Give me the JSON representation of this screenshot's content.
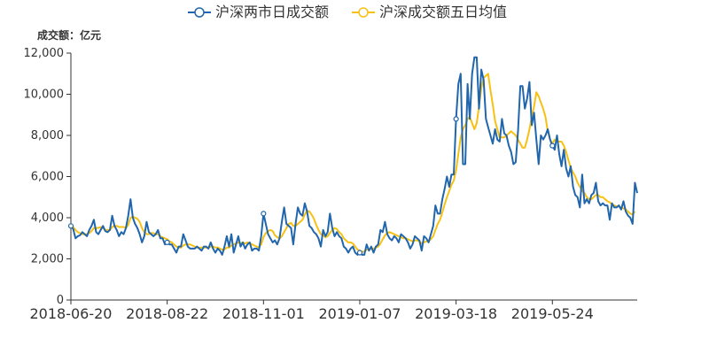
{
  "chart_data": {
    "type": "line",
    "unit_label": "成交额：亿元",
    "legend_position": "top-center",
    "grid": false,
    "ylim": [
      0,
      12000
    ],
    "y_ticks": [
      "0",
      "2,000",
      "4,000",
      "6,000",
      "8,000",
      "10,000",
      "12,000"
    ],
    "x_start": "2018-06-20",
    "x_ticks": [
      "2018-06-20",
      "2018-08-22",
      "2018-11-01",
      "2019-01-07",
      "2019-03-18",
      "2019-05-24"
    ],
    "x_tick_positions": [
      0,
      42,
      84,
      126,
      168,
      210
    ],
    "colors": {
      "daily": "#2166ac",
      "ma5": "#f7c114"
    },
    "series": [
      {
        "name": "沪深两市日成交额",
        "key": "daily",
        "values": [
          3600,
          3450,
          3000,
          3100,
          3150,
          3300,
          3200,
          3100,
          3400,
          3600,
          3900,
          3300,
          3200,
          3400,
          3600,
          3350,
          3300,
          3400,
          4100,
          3600,
          3400,
          3100,
          3300,
          3200,
          3500,
          4100,
          4900,
          4000,
          3700,
          3500,
          3200,
          2800,
          3100,
          3800,
          3300,
          3200,
          3100,
          3200,
          3400,
          3000,
          3000,
          2700,
          2800,
          2700,
          2700,
          2500,
          2300,
          2600,
          2600,
          3200,
          2900,
          2600,
          2500,
          2500,
          2500,
          2600,
          2500,
          2400,
          2600,
          2600,
          2500,
          2800,
          2500,
          2300,
          2500,
          2400,
          2200,
          2600,
          3100,
          2600,
          3200,
          2300,
          2700,
          3100,
          2600,
          2800,
          2500,
          2700,
          2800,
          2400,
          2500,
          2500,
          2400,
          3100,
          4200,
          3700,
          3200,
          3000,
          2800,
          2900,
          2700,
          3000,
          3800,
          4500,
          3700,
          3600,
          3500,
          2700,
          3700,
          4500,
          4200,
          4100,
          4700,
          4300,
          3600,
          3500,
          3300,
          3200,
          3000,
          2600,
          3400,
          3100,
          3300,
          4200,
          3500,
          3100,
          3300,
          3100,
          3000,
          2600,
          2500,
          2300,
          2500,
          2600,
          2300,
          2200,
          2300,
          2200,
          2200,
          2700,
          2400,
          2600,
          2300,
          2600,
          2700,
          3400,
          3300,
          3800,
          3200,
          3000,
          2900,
          3100,
          3000,
          2800,
          3200,
          3100,
          3000,
          2800,
          2500,
          2700,
          3100,
          3000,
          2900,
          2400,
          3100,
          3000,
          2800,
          3200,
          3600,
          4600,
          4200,
          4200,
          4900,
          5400,
          6000,
          5500,
          6100,
          6100,
          8800,
          10500,
          11000,
          6600,
          6600,
          10500,
          8800,
          11000,
          11800,
          11800,
          9300,
          11200,
          10700,
          8800,
          8400,
          8000,
          7600,
          8300,
          7800,
          7700,
          8800,
          8100,
          8000,
          7500,
          7200,
          6600,
          6700,
          8200,
          10400,
          10400,
          9300,
          9800,
          10600,
          8500,
          9100,
          7800,
          6600,
          8000,
          7800,
          8000,
          8300,
          7800,
          7500,
          7300,
          8000,
          7100,
          6500,
          7300,
          6400,
          6000,
          6500,
          5500,
          5100,
          5000,
          4500,
          6100,
          4700,
          4900,
          4700,
          5100,
          5200,
          5700,
          4800,
          4600,
          4700,
          4600,
          4600,
          3900,
          4700,
          4500,
          4500,
          4600,
          4400,
          4800,
          4300,
          4100,
          4000,
          3700,
          5700,
          5200
        ]
      },
      {
        "name": "沪深成交额五日均值",
        "key": "ma5",
        "values": [
          3600,
          3550,
          3400,
          3300,
          3250,
          3200,
          3200,
          3200,
          3250,
          3350,
          3500,
          3500,
          3500,
          3550,
          3500,
          3400,
          3400,
          3400,
          3550,
          3600,
          3600,
          3550,
          3550,
          3550,
          3500,
          3650,
          4000,
          4050,
          4000,
          3950,
          3800,
          3500,
          3300,
          3200,
          3200,
          3250,
          3250,
          3200,
          3200,
          3100,
          3050,
          3000,
          2950,
          2850,
          2800,
          2700,
          2600,
          2550,
          2550,
          2650,
          2700,
          2700,
          2700,
          2650,
          2600,
          2550,
          2550,
          2550,
          2550,
          2550,
          2550,
          2600,
          2600,
          2550,
          2550,
          2500,
          2450,
          2450,
          2550,
          2550,
          2650,
          2700,
          2750,
          2800,
          2750,
          2800,
          2750,
          2800,
          2750,
          2700,
          2650,
          2600,
          2550,
          2700,
          3050,
          3250,
          3350,
          3400,
          3350,
          3150,
          3050,
          3000,
          3100,
          3300,
          3500,
          3700,
          3750,
          3600,
          3600,
          3700,
          3800,
          3900,
          4150,
          4350,
          4300,
          4150,
          3950,
          3650,
          3400,
          3200,
          3150,
          3050,
          3100,
          3250,
          3400,
          3500,
          3450,
          3300,
          3200,
          3000,
          2900,
          2800,
          2800,
          2750,
          2600,
          2450,
          2400,
          2350,
          2350,
          2450,
          2450,
          2500,
          2500,
          2550,
          2600,
          2750,
          2950,
          3150,
          3250,
          3300,
          3250,
          3200,
          3150,
          3100,
          3050,
          3000,
          3000,
          2950,
          2900,
          2850,
          2900,
          2900,
          2850,
          2750,
          2800,
          2850,
          2850,
          2950,
          3100,
          3400,
          3700,
          3900,
          4250,
          4650,
          5000,
          5300,
          5600,
          5800,
          6300,
          7100,
          7900,
          8300,
          8500,
          8800,
          8900,
          8600,
          8300,
          8600,
          9400,
          10300,
          10800,
          10900,
          11000,
          10200,
          9500,
          8700,
          8300,
          7900,
          7900,
          7900,
          8000,
          8100,
          8200,
          8100,
          8000,
          7800,
          7600,
          7400,
          7400,
          7800,
          8300,
          8900,
          9400,
          10100,
          9900,
          9600,
          9300,
          8900,
          8200,
          7800,
          7600,
          7800,
          7700,
          7700,
          7700,
          7500,
          7200,
          6800,
          6400,
          6200,
          6000,
          5700,
          5500,
          5300,
          5200,
          5000,
          4900,
          4900,
          5000,
          5100,
          5100,
          5000,
          5000,
          4900,
          4800,
          4750,
          4650,
          4600,
          4550,
          4550,
          4500,
          4450,
          4400,
          4300,
          4200,
          4150,
          4300
        ]
      }
    ]
  }
}
